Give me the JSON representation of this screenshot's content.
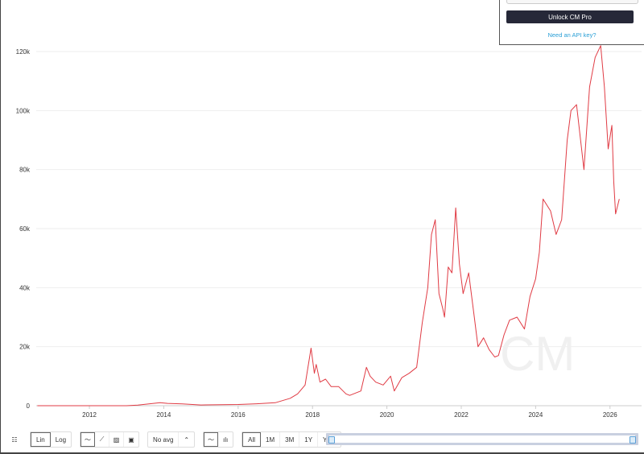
{
  "popup": {
    "unlock_label": "Unlock CM Pro",
    "api_link": "Need an API key?"
  },
  "toolbar": {
    "scale": [
      "Lin",
      "Log"
    ],
    "scale_selected": "Lin",
    "avg_label": "No avg",
    "ranges": [
      "All",
      "1M",
      "3M",
      "1Y",
      "YTD"
    ],
    "range_selected": "All"
  },
  "watermark": "CM",
  "chart_data": {
    "type": "line",
    "title": "",
    "xlabel": "",
    "ylabel": "",
    "color": "#e03b44",
    "xlim": [
      2010.57,
      2026.2
    ],
    "ylim": [
      0,
      120000
    ],
    "x_ticks": [
      "2012",
      "2014",
      "2016",
      "2018",
      "2020",
      "2022",
      "2024",
      "2026"
    ],
    "y_ticks": [
      "0",
      "20k",
      "40k",
      "60k",
      "80k",
      "100k",
      "120k"
    ],
    "grid": "horizontal",
    "x": [
      2010.6,
      2013.0,
      2013.3,
      2013.9,
      2014.1,
      2014.5,
      2015.0,
      2016.0,
      2016.5,
      2017.0,
      2017.4,
      2017.6,
      2017.8,
      2017.96,
      2018.05,
      2018.1,
      2018.2,
      2018.35,
      2018.5,
      2018.7,
      2018.9,
      2019.0,
      2019.3,
      2019.45,
      2019.55,
      2019.7,
      2019.9,
      2020.1,
      2020.2,
      2020.4,
      2020.6,
      2020.8,
      2020.95,
      2021.1,
      2021.2,
      2021.3,
      2021.4,
      2021.5,
      2021.55,
      2021.65,
      2021.75,
      2021.85,
      2021.95,
      2022.05,
      2022.2,
      2022.35,
      2022.45,
      2022.6,
      2022.75,
      2022.9,
      2023.0,
      2023.15,
      2023.3,
      2023.5,
      2023.7,
      2023.85,
      2024.0,
      2024.1,
      2024.2,
      2024.4,
      2024.55,
      2024.7,
      2024.85,
      2024.95,
      2025.1,
      2025.3,
      2025.45,
      2025.6,
      2025.75,
      2025.85,
      2025.95,
      2026.05,
      2026.1,
      2026.15,
      2026.25
    ],
    "y": [
      0,
      10,
      200,
      1000,
      800,
      600,
      250,
      400,
      650,
      1000,
      2500,
      4000,
      7000,
      19500,
      11000,
      14000,
      8000,
      9000,
      6500,
      6500,
      4000,
      3500,
      5000,
      13000,
      10000,
      8000,
      7000,
      10000,
      5000,
      9500,
      11000,
      13000,
      28000,
      40000,
      58000,
      63000,
      38000,
      33000,
      30000,
      47000,
      45000,
      67000,
      48000,
      38000,
      45000,
      30000,
      20000,
      23000,
      19000,
      16500,
      17000,
      24000,
      29000,
      30000,
      26000,
      37000,
      43000,
      52000,
      70000,
      66000,
      58000,
      63000,
      90000,
      100000,
      102000,
      80000,
      108000,
      118000,
      122000,
      108000,
      87000,
      95000,
      76000,
      65000,
      70000
    ]
  }
}
